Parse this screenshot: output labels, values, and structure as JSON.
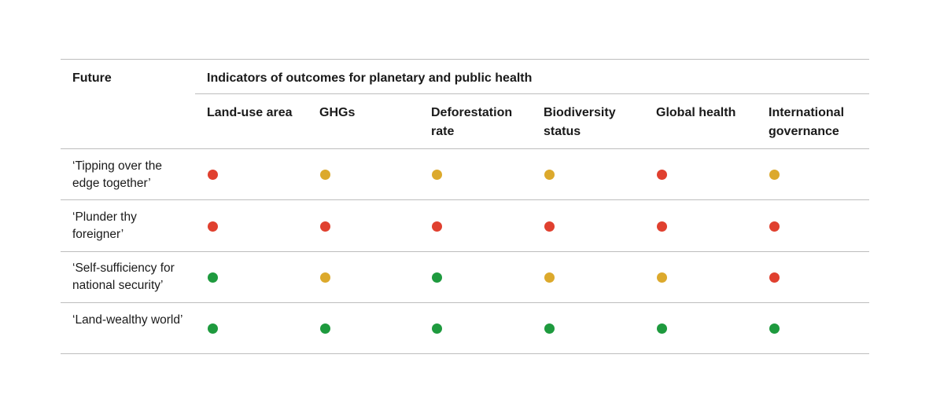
{
  "table": {
    "future_header": "Future",
    "group_header": "Indicators of outcomes for planetary and public health",
    "columns": [
      {
        "line1": "Land-use area",
        "line2": ""
      },
      {
        "line1": "GHGs",
        "line2": ""
      },
      {
        "line1": "Deforestation",
        "line2": "rate"
      },
      {
        "line1": "Biodiversity",
        "line2": "status"
      },
      {
        "line1": "Global health",
        "line2": ""
      },
      {
        "line1": "International",
        "line2": "governance"
      }
    ],
    "rows": [
      {
        "label_line1": "‘Tipping over the",
        "label_line2": "edge together’",
        "statuses": [
          "red",
          "amber",
          "amber",
          "amber",
          "red",
          "amber"
        ]
      },
      {
        "label_line1": "‘Plunder thy",
        "label_line2": "foreigner’",
        "statuses": [
          "red",
          "red",
          "red",
          "red",
          "red",
          "red"
        ]
      },
      {
        "label_line1": "‘Self-sufficiency for",
        "label_line2": "national security’",
        "statuses": [
          "green",
          "amber",
          "green",
          "amber",
          "amber",
          "red"
        ]
      },
      {
        "label_line1": "‘Land-wealthy world’",
        "label_line2": "",
        "statuses": [
          "green",
          "green",
          "green",
          "green",
          "green",
          "green"
        ]
      }
    ]
  },
  "colors": {
    "red": "#e0402f",
    "amber": "#dca92c",
    "green": "#1e9a3e",
    "rule": "#bdbdbd"
  }
}
